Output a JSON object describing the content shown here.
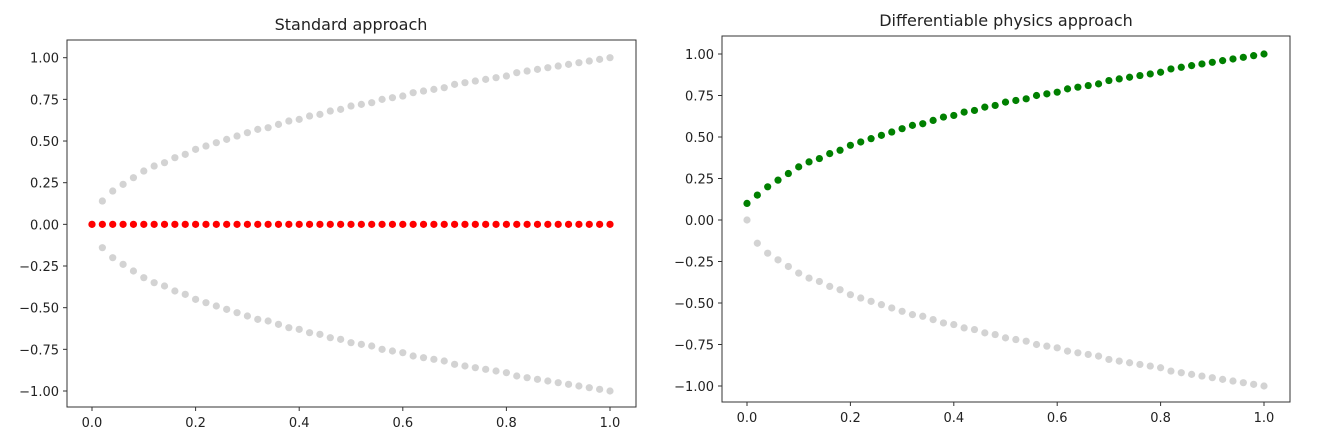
{
  "chart_data": [
    {
      "type": "scatter",
      "title": "Standard approach",
      "xlim": [
        -0.05,
        1.05
      ],
      "ylim": [
        -1.1,
        1.1
      ],
      "xticks": [
        "0.0",
        "0.2",
        "0.4",
        "0.6",
        "0.8",
        "1.0"
      ],
      "yticks": [
        "1.00",
        "0.75",
        "0.50",
        "0.25",
        "0.00",
        "−0.25",
        "−0.50",
        "−0.75",
        "−1.00"
      ],
      "x": [
        0,
        0.02,
        0.04,
        0.06,
        0.08,
        0.1,
        0.12,
        0.14,
        0.16,
        0.18,
        0.2,
        0.22,
        0.24,
        0.26,
        0.28,
        0.3,
        0.32,
        0.34,
        0.36,
        0.38,
        0.4,
        0.42,
        0.44,
        0.46,
        0.48,
        0.5,
        0.52,
        0.54,
        0.56,
        0.58,
        0.6,
        0.62,
        0.64,
        0.66,
        0.68,
        0.7,
        0.72,
        0.74,
        0.76,
        0.78,
        0.8,
        0.82,
        0.84,
        0.86,
        0.88,
        0.9,
        0.92,
        0.94,
        0.96,
        0.98,
        1.0
      ],
      "series": [
        {
          "color": "#d3d3d3",
          "y": [
            0,
            0.14,
            0.2,
            0.24,
            0.28,
            0.32,
            0.35,
            0.37,
            0.4,
            0.42,
            0.45,
            0.47,
            0.49,
            0.51,
            0.53,
            0.55,
            0.57,
            0.58,
            0.6,
            0.62,
            0.63,
            0.65,
            0.66,
            0.68,
            0.69,
            0.71,
            0.72,
            0.73,
            0.75,
            0.76,
            0.77,
            0.79,
            0.8,
            0.81,
            0.82,
            0.84,
            0.85,
            0.86,
            0.87,
            0.88,
            0.89,
            0.91,
            0.92,
            0.93,
            0.94,
            0.95,
            0.96,
            0.97,
            0.98,
            0.99,
            1.0
          ]
        },
        {
          "color": "#d3d3d3",
          "y": [
            0,
            -0.14,
            -0.2,
            -0.24,
            -0.28,
            -0.32,
            -0.35,
            -0.37,
            -0.4,
            -0.42,
            -0.45,
            -0.47,
            -0.49,
            -0.51,
            -0.53,
            -0.55,
            -0.57,
            -0.58,
            -0.6,
            -0.62,
            -0.63,
            -0.65,
            -0.66,
            -0.68,
            -0.69,
            -0.71,
            -0.72,
            -0.73,
            -0.75,
            -0.76,
            -0.77,
            -0.79,
            -0.8,
            -0.81,
            -0.82,
            -0.84,
            -0.85,
            -0.86,
            -0.87,
            -0.88,
            -0.89,
            -0.91,
            -0.92,
            -0.93,
            -0.94,
            -0.95,
            -0.96,
            -0.97,
            -0.98,
            -0.99,
            -1.0
          ]
        },
        {
          "color": "#ff0000",
          "y": [
            0,
            0,
            0,
            0,
            0,
            0,
            0,
            0,
            0,
            0,
            0,
            0,
            0,
            0,
            0,
            0,
            0,
            0,
            0,
            0,
            0,
            0,
            0,
            0,
            0,
            0,
            0,
            0,
            0,
            0,
            0,
            0,
            0,
            0,
            0,
            0,
            0,
            0,
            0,
            0,
            0,
            0,
            0,
            0,
            0,
            0,
            0,
            0,
            0,
            0,
            0
          ]
        }
      ]
    },
    {
      "type": "scatter",
      "title": "Differentiable physics approach",
      "xlim": [
        -0.05,
        1.05
      ],
      "ylim": [
        -1.1,
        1.1
      ],
      "xticks": [
        "0.0",
        "0.2",
        "0.4",
        "0.6",
        "0.8",
        "1.0"
      ],
      "yticks": [
        "1.00",
        "0.75",
        "0.50",
        "0.25",
        "0.00",
        "−0.25",
        "−0.50",
        "−0.75",
        "−1.00"
      ],
      "x": [
        0,
        0.02,
        0.04,
        0.06,
        0.08,
        0.1,
        0.12,
        0.14,
        0.16,
        0.18,
        0.2,
        0.22,
        0.24,
        0.26,
        0.28,
        0.3,
        0.32,
        0.34,
        0.36,
        0.38,
        0.4,
        0.42,
        0.44,
        0.46,
        0.48,
        0.5,
        0.52,
        0.54,
        0.56,
        0.58,
        0.6,
        0.62,
        0.64,
        0.66,
        0.68,
        0.7,
        0.72,
        0.74,
        0.76,
        0.78,
        0.8,
        0.82,
        0.84,
        0.86,
        0.88,
        0.9,
        0.92,
        0.94,
        0.96,
        0.98,
        1.0
      ],
      "series": [
        {
          "color": "#d3d3d3",
          "y": [
            0,
            -0.14,
            -0.2,
            -0.24,
            -0.28,
            -0.32,
            -0.35,
            -0.37,
            -0.4,
            -0.42,
            -0.45,
            -0.47,
            -0.49,
            -0.51,
            -0.53,
            -0.55,
            -0.57,
            -0.58,
            -0.6,
            -0.62,
            -0.63,
            -0.65,
            -0.66,
            -0.68,
            -0.69,
            -0.71,
            -0.72,
            -0.73,
            -0.75,
            -0.76,
            -0.77,
            -0.79,
            -0.8,
            -0.81,
            -0.82,
            -0.84,
            -0.85,
            -0.86,
            -0.87,
            -0.88,
            -0.89,
            -0.91,
            -0.92,
            -0.93,
            -0.94,
            -0.95,
            -0.96,
            -0.97,
            -0.98,
            -0.99,
            -1.0
          ]
        },
        {
          "color": "#008000",
          "y": [
            0.1,
            0.15,
            0.2,
            0.24,
            0.28,
            0.32,
            0.35,
            0.37,
            0.4,
            0.42,
            0.45,
            0.47,
            0.49,
            0.51,
            0.53,
            0.55,
            0.57,
            0.58,
            0.6,
            0.62,
            0.63,
            0.65,
            0.66,
            0.68,
            0.69,
            0.71,
            0.72,
            0.73,
            0.75,
            0.76,
            0.77,
            0.79,
            0.8,
            0.81,
            0.82,
            0.84,
            0.85,
            0.86,
            0.87,
            0.88,
            0.89,
            0.91,
            0.92,
            0.93,
            0.94,
            0.95,
            0.96,
            0.97,
            0.98,
            0.99,
            1.0
          ]
        }
      ]
    }
  ]
}
